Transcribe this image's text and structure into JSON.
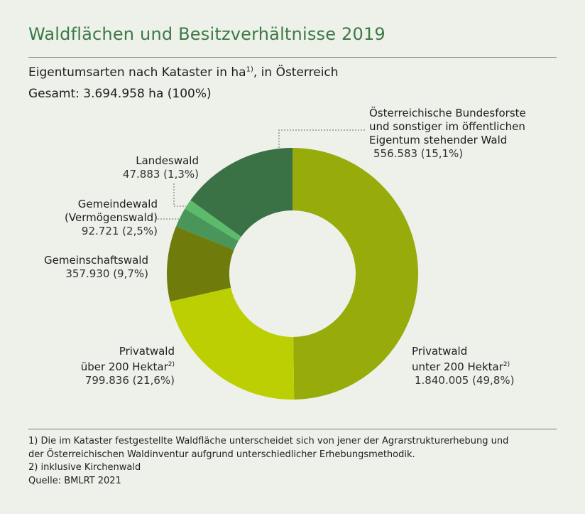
{
  "title": "Waldflächen und Besitzverhältnisse 2019",
  "subtitle": {
    "text": "Eigentumsarten nach Kataster in ha",
    "footnote_mark": "1)",
    "suffix": ", in Österreich"
  },
  "total": "Gesamt: 3.694.958 ha (100%)",
  "chart_data": {
    "type": "pie",
    "donut": true,
    "start": "12 o'clock, clockwise",
    "slices": [
      {
        "label_lines": [
          "Privatwald",
          "unter 200 Hektar"
        ],
        "footnote_mark": "2)",
        "value": 1840005,
        "value_text": "1.840.005 (49,8%)",
        "percent": 49.8,
        "color": "#97ab0b"
      },
      {
        "label_lines": [
          "Privatwald",
          "über 200 Hektar"
        ],
        "footnote_mark": "2)",
        "value": 799836,
        "value_text": "799.836 (21,6%)",
        "percent": 21.6,
        "color": "#bccf02"
      },
      {
        "label_lines": [
          "Gemeinschaftswald"
        ],
        "value": 357930,
        "value_text": "357.930 (9,7%)",
        "percent": 9.7,
        "color": "#6f7c0c"
      },
      {
        "label_lines": [
          "Gemeindewald",
          "(Vermögenswald)"
        ],
        "value": 92721,
        "value_text": "92.721 (2,5%)",
        "percent": 2.5,
        "color": "#4a955a"
      },
      {
        "label_lines": [
          "Landeswald"
        ],
        "value": 47883,
        "value_text": "47.883 (1,3%)",
        "percent": 1.3,
        "color": "#5cbb6a"
      },
      {
        "label_lines": [
          "Österreichische Bundesforste",
          "und sonstiger im öffentlichen",
          "Eigentum stehender Wald"
        ],
        "value": 556583,
        "value_text": "556.583 (15,1%)",
        "percent": 15.1,
        "color": "#3a7145"
      }
    ]
  },
  "footnotes": [
    "1) Die im Kataster festgestellte Waldfläche unterscheidet sich von jener der Agrarstrukturerhebung und",
    "der Österreichischen Waldinventur aufgrund unterschiedlicher Erhebungsmethodik.",
    "2) inklusive Kirchenwald",
    "Quelle: BMLRT 2021"
  ]
}
